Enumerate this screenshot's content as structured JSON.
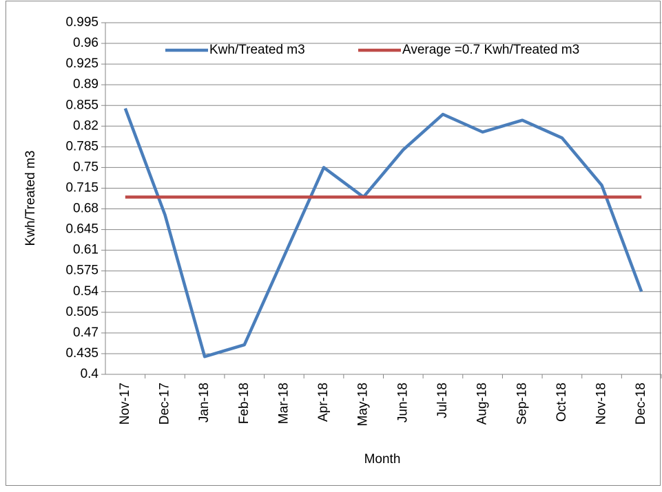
{
  "chart_data": {
    "type": "line",
    "y_label": "Kwh/Treated m3",
    "x_label": "Month",
    "categories": [
      "Nov-17",
      "Dec-17",
      "Jan-18",
      "Feb-18",
      "Mar-18",
      "Apr-18",
      "May-18",
      "Jun-18",
      "Jul-18",
      "Aug-18",
      "Sep-18",
      "Oct-18",
      "Nov-18",
      "Dec-18"
    ],
    "series": [
      {
        "name": "Kwh/Treated m3",
        "color": "#4a7ebb",
        "values": [
          0.85,
          0.67,
          0.43,
          0.45,
          0.6,
          0.75,
          0.7,
          0.78,
          0.84,
          0.81,
          0.83,
          0.8,
          0.72,
          0.54
        ]
      },
      {
        "name": "Average =0.7 Kwh/Treated m3",
        "color": "#be4b48",
        "values": [
          0.7,
          0.7,
          0.7,
          0.7,
          0.7,
          0.7,
          0.7,
          0.7,
          0.7,
          0.7,
          0.7,
          0.7,
          0.7,
          0.7
        ]
      }
    ],
    "ylim": [
      0.4,
      0.995
    ],
    "yticks": [
      0.4,
      0.435,
      0.47,
      0.505,
      0.54,
      0.575,
      0.61,
      0.645,
      0.68,
      0.715,
      0.75,
      0.785,
      0.82,
      0.855,
      0.89,
      0.925,
      0.96,
      0.995
    ],
    "grid": true,
    "legend": "top"
  }
}
